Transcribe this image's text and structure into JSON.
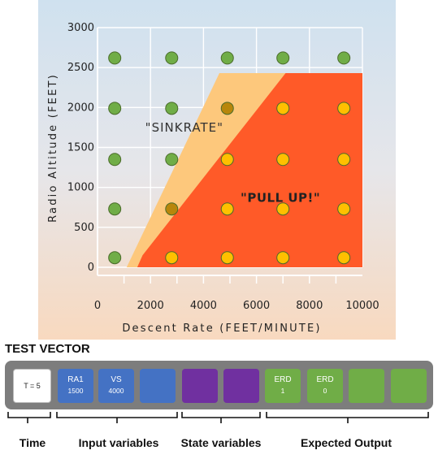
{
  "chart_data": {
    "type": "scatter",
    "title": "",
    "xlabel": "Descent Rate (FEET/MINUTE)",
    "ylabel": "Radio Altitude (FEET)",
    "xlim": [
      0,
      10000
    ],
    "ylim": [
      0,
      3000
    ],
    "x_ticks": [
      0,
      2000,
      4000,
      6000,
      8000,
      10000
    ],
    "y_ticks": [
      0,
      500,
      1000,
      1500,
      2000,
      2500,
      3000
    ],
    "regions": [
      {
        "name": "caution",
        "label": "\"SINKRATE\"",
        "color": "#fdc87c",
        "polygon": [
          [
            1100,
            0
          ],
          [
            4600,
            2430
          ],
          [
            10000,
            2430
          ],
          [
            10000,
            0
          ]
        ]
      },
      {
        "name": "warning",
        "label": "\"PULL UP!\"",
        "color": "#ff5a28",
        "polygon": [
          [
            1500,
            0
          ],
          [
            1700,
            150
          ],
          [
            7100,
            2430
          ],
          [
            10000,
            2430
          ],
          [
            10000,
            0
          ]
        ]
      }
    ],
    "points": [
      {
        "x": 650,
        "y": 120,
        "color": "#70ad47"
      },
      {
        "x": 2800,
        "y": 120,
        "color": "#ffc000"
      },
      {
        "x": 4900,
        "y": 120,
        "color": "#ffc000"
      },
      {
        "x": 7000,
        "y": 120,
        "color": "#ffc000"
      },
      {
        "x": 9300,
        "y": 120,
        "color": "#ffc000"
      },
      {
        "x": 650,
        "y": 730,
        "color": "#70ad47"
      },
      {
        "x": 2800,
        "y": 730,
        "color": "#b8860b"
      },
      {
        "x": 4900,
        "y": 730,
        "color": "#ffc000"
      },
      {
        "x": 7000,
        "y": 730,
        "color": "#ffc000"
      },
      {
        "x": 9300,
        "y": 730,
        "color": "#ffc000"
      },
      {
        "x": 650,
        "y": 1350,
        "color": "#70ad47"
      },
      {
        "x": 2800,
        "y": 1350,
        "color": "#70ad47"
      },
      {
        "x": 4900,
        "y": 1350,
        "color": "#ffc000"
      },
      {
        "x": 7000,
        "y": 1350,
        "color": "#ffc000"
      },
      {
        "x": 9300,
        "y": 1350,
        "color": "#ffc000"
      },
      {
        "x": 650,
        "y": 1990,
        "color": "#70ad47"
      },
      {
        "x": 2800,
        "y": 1990,
        "color": "#70ad47"
      },
      {
        "x": 4900,
        "y": 1990,
        "color": "#b8860b"
      },
      {
        "x": 7000,
        "y": 1990,
        "color": "#ffc000"
      },
      {
        "x": 9300,
        "y": 1990,
        "color": "#ffc000"
      },
      {
        "x": 650,
        "y": 2620,
        "color": "#70ad47"
      },
      {
        "x": 2800,
        "y": 2620,
        "color": "#70ad47"
      },
      {
        "x": 4900,
        "y": 2620,
        "color": "#70ad47"
      },
      {
        "x": 7000,
        "y": 2620,
        "color": "#70ad47"
      },
      {
        "x": 9300,
        "y": 2620,
        "color": "#70ad47"
      }
    ]
  },
  "test_vector": {
    "title": "TEST VECTOR",
    "time_cell": "T = 5",
    "inputs": [
      {
        "name": "RA1",
        "value": "1500"
      },
      {
        "name": "VS",
        "value": "4000"
      },
      {
        "name": "",
        "value": ""
      }
    ],
    "states": [
      {
        "name": "",
        "value": ""
      },
      {
        "name": "",
        "value": ""
      }
    ],
    "outputs": [
      {
        "name": "ERD",
        "value": "1"
      },
      {
        "name": "ERD",
        "value": "0"
      },
      {
        "name": "",
        "value": ""
      },
      {
        "name": "",
        "value": ""
      }
    ],
    "labels": {
      "time": "Time",
      "input": "Input variables",
      "state": "State variables",
      "output": "Expected Output"
    }
  }
}
